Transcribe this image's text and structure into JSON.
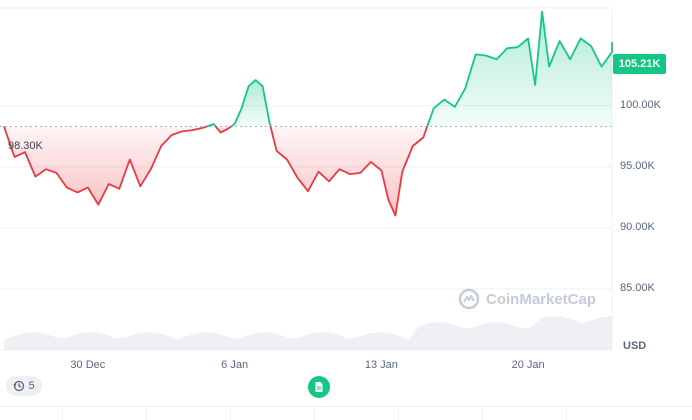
{
  "chart_data": {
    "type": "area",
    "ylabel": "USD",
    "ylim": [
      80000,
      108000
    ],
    "y_ticks": [
      {
        "value": 100000,
        "label": "100.00K"
      },
      {
        "value": 95000,
        "label": "95.00K"
      },
      {
        "value": 90000,
        "label": "90.00K"
      },
      {
        "value": 85000,
        "label": "85.00K"
      }
    ],
    "x_ticks": [
      {
        "date": "2024-12-30",
        "label": "30 Dec"
      },
      {
        "date": "2025-01-06",
        "label": "6 Jan"
      },
      {
        "date": "2025-01-13",
        "label": "13 Jan"
      },
      {
        "date": "2025-01-20",
        "label": "20 Jan"
      }
    ],
    "x_range": [
      "2024-12-26",
      "2025-01-24"
    ],
    "baseline": {
      "value": 98300,
      "label": "98.30K"
    },
    "current": {
      "value": 105210,
      "label": "105.21K"
    },
    "colors": {
      "above": "#16c784",
      "below": "#ea3943"
    },
    "series": [
      {
        "points": [
          [
            "2024-12-26",
            98300
          ],
          [
            "2024-12-26",
            95800
          ],
          [
            "2024-12-27",
            96200
          ],
          [
            "2024-12-27",
            94200
          ],
          [
            "2024-12-28",
            94800
          ],
          [
            "2024-12-28",
            94500
          ],
          [
            "2024-12-29",
            93300
          ],
          [
            "2024-12-29",
            92900
          ],
          [
            "2024-12-30",
            93300
          ],
          [
            "2024-12-30",
            91900
          ],
          [
            "2024-12-31",
            93600
          ],
          [
            "2024-12-31",
            93200
          ],
          [
            "2025-01-01",
            95600
          ],
          [
            "2025-01-01",
            93400
          ],
          [
            "2025-01-02",
            94800
          ],
          [
            "2025-01-02",
            96700
          ],
          [
            "2025-01-03",
            97600
          ],
          [
            "2025-01-03",
            97900
          ],
          [
            "2025-01-04",
            98000
          ],
          [
            "2025-01-04",
            98200
          ],
          [
            "2025-01-05",
            98500
          ],
          [
            "2025-01-05",
            97800
          ],
          [
            "2025-01-05",
            98100
          ],
          [
            "2025-01-06",
            98500
          ],
          [
            "2025-01-06",
            99800
          ],
          [
            "2025-01-06",
            101600
          ],
          [
            "2025-01-07",
            102100
          ],
          [
            "2025-01-07",
            101600
          ],
          [
            "2025-01-07",
            98600
          ],
          [
            "2025-01-08",
            96300
          ],
          [
            "2025-01-08",
            95600
          ],
          [
            "2025-01-09",
            94100
          ],
          [
            "2025-01-09",
            93000
          ],
          [
            "2025-01-10",
            94600
          ],
          [
            "2025-01-10",
            93800
          ],
          [
            "2025-01-11",
            94800
          ],
          [
            "2025-01-11",
            94400
          ],
          [
            "2025-01-12",
            94500
          ],
          [
            "2025-01-12",
            95400
          ],
          [
            "2025-01-13",
            94700
          ],
          [
            "2025-01-13",
            92300
          ],
          [
            "2025-01-13",
            91000
          ],
          [
            "2025-01-14",
            94600
          ],
          [
            "2025-01-14",
            96700
          ],
          [
            "2025-01-15",
            97400
          ],
          [
            "2025-01-15",
            99800
          ],
          [
            "2025-01-16",
            100500
          ],
          [
            "2025-01-16",
            99900
          ],
          [
            "2025-01-17",
            101400
          ],
          [
            "2025-01-17",
            104200
          ],
          [
            "2025-01-18",
            104100
          ],
          [
            "2025-01-18",
            103800
          ],
          [
            "2025-01-19",
            104700
          ],
          [
            "2025-01-19",
            104800
          ],
          [
            "2025-01-20",
            105500
          ],
          [
            "2025-01-20",
            101700
          ],
          [
            "2025-01-20",
            107700
          ],
          [
            "2025-01-21",
            103200
          ],
          [
            "2025-01-21",
            105300
          ],
          [
            "2025-01-22",
            103800
          ],
          [
            "2025-01-22",
            105500
          ],
          [
            "2025-01-23",
            104900
          ],
          [
            "2025-01-23",
            103200
          ],
          [
            "2025-01-24",
            104400
          ],
          [
            "2025-01-24",
            105210
          ]
        ]
      }
    ],
    "legend": "none",
    "grid": true
  },
  "labels": {
    "current_price": "105.21K",
    "reference_price": "98.30K",
    "currency": "USD",
    "watermark": "CoinMarketCap",
    "history_count": "5"
  },
  "icons": {
    "history": "history-clock-icon",
    "news": "news-document-icon",
    "watermark": "coinmarketcap-logo-icon"
  }
}
